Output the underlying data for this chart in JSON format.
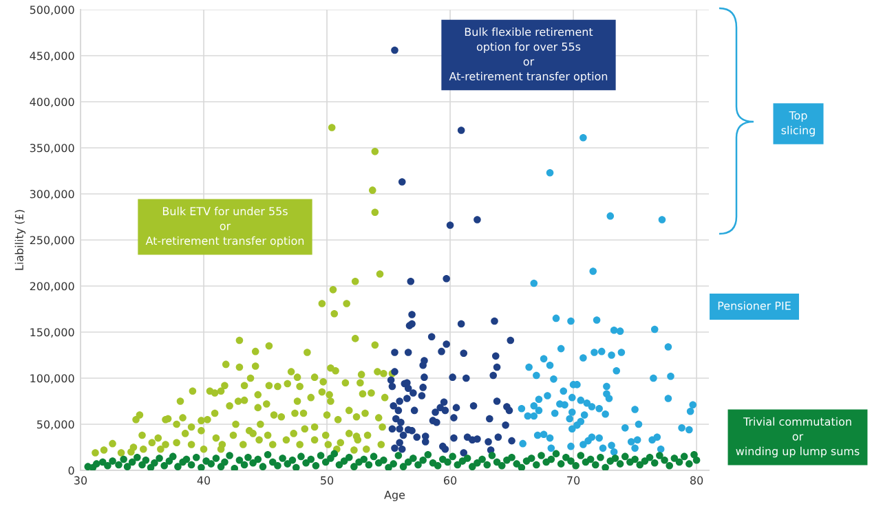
{
  "chart_data": {
    "type": "scatter",
    "xlabel": "Age",
    "ylabel": "Liability (£)",
    "xlim": [
      30,
      81
    ],
    "xticks": [
      30,
      40,
      50,
      60,
      70,
      80
    ],
    "ylim": [
      0,
      500000
    ],
    "yticks": [
      0,
      {
        "value": 50000,
        "label": "50,000"
      },
      {
        "value": 100000,
        "label": "100,000"
      },
      {
        "value": 150000,
        "label": "150,000"
      },
      {
        "value": 200000,
        "label": "200,000"
      },
      {
        "value": 250000,
        "label": "250,000"
      },
      {
        "value": 300000,
        "label": "300,000"
      },
      {
        "value": 350000,
        "label": "350,000"
      },
      {
        "value": 400000,
        "label": "400,000"
      },
      {
        "value": 450000,
        "label": "450,000"
      },
      {
        "value": 500000,
        "label": "500,000"
      }
    ],
    "grid": true,
    "legend": false,
    "marker": "circle",
    "annotations": [
      "Bulk flexible retirement\noption for over 55s\nor\nAt-retirement transfer option",
      "Bulk ETV for under 55s\nor\nAt-retirement transfer option",
      "Top\nslicing",
      "Pensioner PIE",
      "Trivial commutation\nor\nwinding up lump sums"
    ],
    "series": [
      {
        "color": "#a5c42b",
        "x": [
          50.4,
          53.9,
          53.7,
          53.9,
          54.3,
          52.3,
          50.5,
          49.6,
          51.6,
          50.6,
          52.3,
          53.9,
          42.9,
          45.3,
          48.4,
          44.2,
          41.8,
          42.9,
          44.2,
          50.3,
          50.7,
          54.1,
          52.8,
          55.3,
          31.2,
          31.9,
          32.6,
          33.3,
          34.5,
          34.8,
          34.1,
          35,
          35.8,
          36.3,
          36.9,
          37.1,
          37.8,
          38.1,
          38.3,
          39.1,
          38.5,
          39,
          39.8,
          40.5,
          40.9,
          41.4,
          41.7,
          43.3,
          43.8,
          44.4,
          45.3,
          46,
          46.8,
          47.1,
          47.6,
          47.8,
          49,
          49.7,
          49.6,
          51.5,
          52.7,
          52.9,
          53.6,
          54.6,
          54.7,
          54.2,
          54.5,
          54.4,
          53.2,
          52.5,
          51.8,
          52.4,
          53.1,
          51.8,
          50.3,
          50,
          50.9,
          49,
          48.1,
          47.4,
          46.3,
          45.7,
          44.6,
          43.7,
          42.6,
          42.1,
          42.8,
          43.3,
          44.4,
          45.1,
          47.6,
          48.7,
          50.2,
          40.9,
          40.3,
          39.8,
          41,
          41.5,
          42.4,
          43.2,
          44.5,
          45.6,
          46.7,
          47.8,
          49,
          50.1,
          51.1,
          52.4,
          53.3,
          37.8,
          36.9,
          34.3,
          35.1,
          39,
          40,
          41.4,
          44,
          45.2,
          47.3,
          48.2,
          49.9,
          50.8,
          52.2,
          36.5
        ],
        "values": [
          372000,
          346000,
          304000,
          280000,
          213000,
          205000,
          196000,
          181000,
          181000,
          170000,
          143000,
          136000,
          141000,
          135000,
          128000,
          129000,
          115000,
          112000,
          113000,
          111000,
          108000,
          107000,
          104000,
          105000,
          19000,
          22000,
          29000,
          19000,
          55000,
          60000,
          20000,
          38000,
          30000,
          35000,
          55000,
          56000,
          50000,
          75000,
          57000,
          86000,
          40000,
          47000,
          54000,
          86000,
          84000,
          86000,
          92000,
          92000,
          100000,
          82000,
          92000,
          91000,
          94000,
          107000,
          101000,
          91000,
          101000,
          96000,
          85000,
          95000,
          95000,
          83000,
          84000,
          105000,
          79000,
          57000,
          47000,
          28000,
          23000,
          33000,
          40000,
          58000,
          62000,
          65000,
          75000,
          60000,
          55000,
          47000,
          62000,
          62000,
          58000,
          60000,
          50000,
          43000,
          50000,
          70000,
          75000,
          76000,
          68000,
          72000,
          75000,
          79000,
          82000,
          62000,
          55000,
          43000,
          35000,
          28000,
          38000,
          28000,
          33000,
          28000,
          33000,
          28000,
          33000,
          28000,
          30000,
          37000,
          38000,
          30000,
          28000,
          25000,
          23000,
          28000,
          23000,
          23000,
          40000,
          38000,
          40000,
          45000,
          38000,
          23000,
          22000,
          23000
        ]
      },
      {
        "color": "#1f3f85",
        "x": [
          55.5,
          60.9,
          56.1,
          62.2,
          60.0,
          59.7,
          56.8,
          56.9,
          56.7,
          56.9,
          60.9,
          63.6,
          58.5,
          59.3,
          59.7,
          61.1,
          57.9,
          57.8,
          55.5,
          56.6,
          55.5,
          61.3,
          60.2,
          63.5,
          63.8,
          63.7,
          64.9,
          55.2,
          56.3,
          57.9,
          56.5,
          55.3,
          56.6,
          57.8,
          57,
          57.7,
          56.5,
          55.9,
          59.5,
          55.4,
          55.8,
          57.1,
          58.8,
          59.2,
          59.6,
          60.5,
          61.9,
          63.8,
          64.6,
          64.8,
          60.3,
          63.2,
          55.6,
          58.6,
          58.9,
          64.5,
          56,
          55.3,
          55.9,
          56.6,
          56.9,
          56.2,
          57.3,
          58,
          58,
          60.3,
          61.4,
          61.8,
          62.2,
          63.1,
          63.9,
          65,
          55.9,
          55.5,
          56.1,
          59.4,
          59.6,
          63.3,
          61.1
        ],
        "values": [
          456000,
          369000,
          313000,
          272000,
          266000,
          208000,
          205000,
          169000,
          157000,
          159000,
          159000,
          162000,
          145000,
          129000,
          137000,
          127000,
          119000,
          114000,
          128000,
          128000,
          107000,
          100000,
          101000,
          103000,
          112000,
          124000,
          141000,
          98000,
          94000,
          101000,
          95000,
          91000,
          89000,
          90000,
          84000,
          81000,
          78000,
          75000,
          74000,
          70000,
          65000,
          65000,
          63000,
          68000,
          65000,
          68000,
          70000,
          75000,
          69000,
          65000,
          57000,
          56000,
          56000,
          54000,
          52000,
          49000,
          52000,
          45000,
          45000,
          44000,
          43000,
          38000,
          36000,
          37000,
          31000,
          35000,
          36000,
          33000,
          34000,
          31000,
          36000,
          32000,
          30000,
          24000,
          23000,
          26000,
          23000,
          22000,
          19000
        ]
      },
      {
        "color": "#29a8dc",
        "x": [
          70.8,
          68.1,
          73.0,
          77.2,
          71.6,
          66.8,
          68.6,
          69.8,
          71.9,
          76.6,
          73.3,
          73.8,
          69.0,
          72.3,
          71.7,
          73.1,
          73.9,
          70.8,
          77.7,
          66.4,
          67.6,
          68.1,
          73.5,
          76.5,
          77.9,
          67,
          68.4,
          65.8,
          66.3,
          66.8,
          66.8,
          67.2,
          67.2,
          67.9,
          68.5,
          68.9,
          69.3,
          69.2,
          69.9,
          70,
          70.3,
          69.7,
          69.9,
          69.9,
          70.3,
          70.6,
          70.6,
          71.1,
          70.9,
          71.5,
          72.1,
          72.6,
          72.7,
          72.9,
          72.7,
          75,
          75.3,
          74.2,
          74.7,
          75.2,
          76.4,
          76.8,
          77.7,
          78.8,
          79.4,
          79.5,
          79.7,
          67.1,
          67.6,
          68.1,
          65.9,
          68.2,
          69.8,
          70.8,
          71.2,
          71.5,
          72.1,
          72.4,
          73.1,
          73.3,
          75,
          77.1
        ],
        "values": [
          361000,
          323000,
          276000,
          272000,
          216000,
          203000,
          165000,
          162000,
          163000,
          153000,
          152000,
          151000,
          132000,
          129000,
          128000,
          125000,
          128000,
          122000,
          134000,
          112000,
          121000,
          114000,
          108000,
          100000,
          102000,
          103000,
          99000,
          67000,
          59000,
          59000,
          70000,
          65000,
          77000,
          81000,
          62000,
          72000,
          71000,
          86000,
          79000,
          93000,
          93000,
          56000,
          63000,
          45000,
          49000,
          53000,
          76000,
          73000,
          60000,
          69000,
          67000,
          61000,
          91000,
          78000,
          83000,
          66000,
          50000,
          46000,
          31000,
          33000,
          33000,
          36000,
          78000,
          46000,
          44000,
          64000,
          71000,
          38000,
          39000,
          35000,
          29000,
          24000,
          26000,
          28000,
          32000,
          36000,
          35000,
          24000,
          27000,
          20000,
          24000,
          23000
        ]
      },
      {
        "color": "#0d853a",
        "x": [
          30.6,
          31,
          31.3,
          31.8,
          32.2,
          32.6,
          33.1,
          33.5,
          33.8,
          34.2,
          34.6,
          35,
          35.3,
          35.7,
          36,
          36.4,
          36.8,
          37.2,
          37.5,
          37.9,
          38.3,
          38.6,
          39,
          39.4,
          39.8,
          40.2,
          40.6,
          41,
          41.4,
          41.7,
          42.1,
          42.5,
          42.9,
          43.3,
          43.6,
          44,
          44.4,
          44.8,
          45.2,
          45.6,
          46,
          46.4,
          46.8,
          47.2,
          47.5,
          47.9,
          48.3,
          48.7,
          49.1,
          49.5,
          49.9,
          50.3,
          50.6,
          51,
          51.4,
          51.8,
          52.2,
          52.6,
          53,
          53.4,
          53.8,
          54.2,
          54.6,
          55,
          55.4,
          55.8,
          56.2,
          56.6,
          57,
          57.4,
          57.8,
          58.2,
          58.6,
          59,
          59.4,
          59.8,
          60.2,
          60.6,
          61,
          61.4,
          61.8,
          62.2,
          62.6,
          63,
          63.4,
          63.8,
          64.2,
          64.6,
          65,
          65.4,
          65.8,
          66.2,
          66.6,
          67,
          67.4,
          67.8,
          68.2,
          68.6,
          69,
          69.4,
          69.8,
          70.2,
          70.6,
          71,
          71.4,
          71.8,
          72.2,
          72.6,
          73,
          73.4,
          73.8,
          74.2,
          74.6,
          75,
          75.4,
          75.8,
          76.2,
          76.6,
          77,
          77.4,
          77.8,
          78.2,
          78.6,
          79,
          79.4,
          79.8,
          80
        ],
        "values": [
          4000,
          3000,
          7000,
          9000,
          5000,
          10000,
          6000,
          12000,
          4000,
          9000,
          14000,
          6000,
          11000,
          3000,
          8000,
          13000,
          5000,
          10000,
          15000,
          4000,
          9000,
          12000,
          6000,
          14000,
          3000,
          10000,
          7000,
          13000,
          4000,
          9000,
          16000,
          2000,
          11000,
          6000,
          14000,
          8000,
          12000,
          4000,
          17000,
          9000,
          5000,
          13000,
          7000,
          11000,
          3000,
          15000,
          8000,
          12000,
          5000,
          16000,
          9000,
          13000,
          18000,
          6000,
          10000,
          14000,
          4000,
          9000,
          12000,
          6000,
          15000,
          8000,
          11000,
          3000,
          7000,
          16000,
          4000,
          9000,
          13000,
          6000,
          11000,
          17000,
          8000,
          5000,
          12000,
          9000,
          15000,
          6000,
          10000,
          13000,
          4000,
          8000,
          12000,
          6000,
          16000,
          9000,
          5000,
          11000,
          14000,
          7000,
          3000,
          10000,
          13000,
          6000,
          16000,
          9000,
          12000,
          18000,
          7000,
          14000,
          10000,
          5000,
          16000,
          9000,
          12000,
          6000,
          14000,
          3000,
          10000,
          13000,
          7000,
          15000,
          9000,
          12000,
          6000,
          10000,
          14000,
          8000,
          16000,
          11000,
          5000,
          13000,
          9000,
          15000,
          7000,
          17000,
          11000
        ]
      }
    ]
  }
}
